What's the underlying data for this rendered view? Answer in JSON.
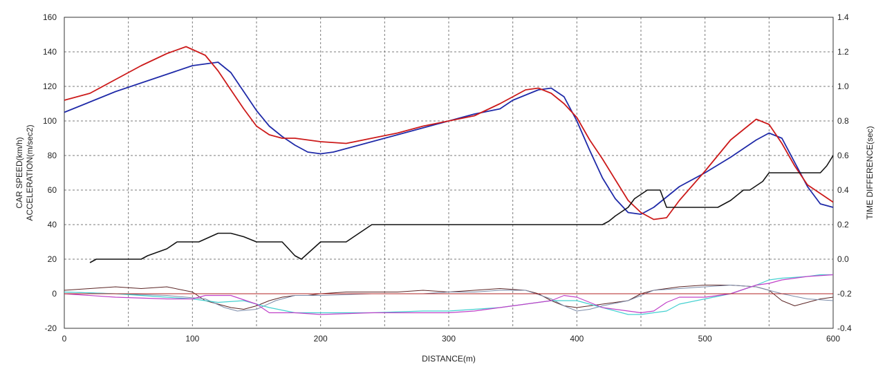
{
  "chart_data": {
    "type": "line",
    "xlabel": "DISTANCE(m)",
    "ylabel_line1": "CAR SPEED(km/h)",
    "ylabel_line2": "ACCELERATION(m/sec2)",
    "y2label": "TIME DIFFERENCE(sec)",
    "xlim": [
      0,
      600
    ],
    "ylim": [
      -20,
      160
    ],
    "y2lim": [
      -0.4,
      1.4
    ],
    "xticks": [
      0,
      100,
      200,
      300,
      400,
      500,
      600
    ],
    "yticks": [
      -20,
      0,
      20,
      40,
      60,
      80,
      100,
      120,
      140,
      160
    ],
    "y2ticks": [
      "-0.4",
      "-0.2",
      "0.0",
      "0.2",
      "0.4",
      "0.6",
      "0.8",
      "1.0",
      "1.2",
      "1.4"
    ],
    "grid": true,
    "series": [
      {
        "axis": "left",
        "color": "#1f2aa8",
        "width": 1.8,
        "x": [
          0,
          20,
          40,
          60,
          80,
          100,
          120,
          130,
          140,
          150,
          160,
          170,
          180,
          190,
          200,
          210,
          220,
          240,
          260,
          280,
          300,
          320,
          340,
          350,
          360,
          370,
          380,
          390,
          400,
          410,
          420,
          430,
          440,
          450,
          460,
          470,
          480,
          500,
          520,
          540,
          550,
          560,
          570,
          580,
          590,
          600
        ],
        "y": [
          105,
          111,
          117,
          122,
          127,
          132,
          134,
          128,
          117,
          106,
          97,
          91,
          86,
          82,
          81,
          82,
          84,
          88,
          92,
          96,
          100,
          104,
          107,
          112,
          115,
          118,
          119,
          114,
          100,
          83,
          67,
          55,
          47,
          46,
          50,
          56,
          62,
          70,
          79,
          89,
          93,
          90,
          76,
          62,
          52,
          50
        ]
      },
      {
        "axis": "left",
        "color": "#cc1a1a",
        "width": 1.8,
        "x": [
          0,
          20,
          40,
          60,
          80,
          95,
          110,
          120,
          130,
          140,
          150,
          160,
          170,
          180,
          200,
          220,
          240,
          260,
          280,
          300,
          320,
          340,
          360,
          370,
          380,
          390,
          400,
          410,
          420,
          430,
          440,
          450,
          460,
          470,
          480,
          500,
          520,
          540,
          550,
          560,
          570,
          580,
          590,
          600
        ],
        "y": [
          112,
          116,
          124,
          132,
          139,
          143,
          138,
          129,
          118,
          107,
          97,
          92,
          90,
          90,
          88,
          87,
          90,
          93,
          97,
          100,
          103,
          110,
          118,
          119,
          116,
          110,
          102,
          89,
          78,
          66,
          54,
          47,
          43,
          44,
          54,
          71,
          89,
          101,
          98,
          87,
          74,
          63,
          58,
          53
        ]
      },
      {
        "axis": "right",
        "color": "#111111",
        "width": 1.6,
        "x": [
          20,
          25,
          60,
          65,
          80,
          88,
          105,
          120,
          130,
          140,
          150,
          165,
          170,
          180,
          185,
          200,
          220,
          240,
          260,
          300,
          350,
          400,
          420,
          425,
          430,
          440,
          445,
          455,
          465,
          470,
          490,
          500,
          510,
          520,
          530,
          535,
          545,
          550,
          560,
          570,
          580,
          590,
          595,
          600
        ],
        "y": [
          -0.02,
          0.0,
          0.0,
          0.02,
          0.06,
          0.1,
          0.1,
          0.15,
          0.15,
          0.13,
          0.1,
          0.1,
          0.1,
          0.02,
          0.0,
          0.1,
          0.1,
          0.2,
          0.2,
          0.2,
          0.2,
          0.2,
          0.2,
          0.22,
          0.25,
          0.3,
          0.35,
          0.4,
          0.4,
          0.3,
          0.3,
          0.3,
          0.3,
          0.34,
          0.4,
          0.4,
          0.45,
          0.5,
          0.5,
          0.5,
          0.5,
          0.5,
          0.54,
          0.6
        ]
      },
      {
        "axis": "left",
        "color": "#5a2323",
        "width": 1.0,
        "x": [
          0,
          20,
          40,
          60,
          80,
          100,
          110,
          120,
          130,
          140,
          150,
          160,
          170,
          180,
          190,
          200,
          220,
          240,
          260,
          280,
          300,
          320,
          340,
          360,
          370,
          380,
          390,
          400,
          410,
          420,
          430,
          440,
          450,
          460,
          470,
          480,
          500,
          520,
          540,
          550,
          560,
          570,
          580,
          590,
          600
        ],
        "y": [
          2,
          3,
          4,
          3,
          4,
          1,
          -4,
          -6,
          -8,
          -9,
          -7,
          -4,
          -2,
          -1,
          -1,
          0,
          1,
          1,
          1,
          2,
          1,
          2,
          3,
          2,
          0,
          -4,
          -7,
          -8,
          -7,
          -6,
          -5,
          -4,
          0,
          2,
          3,
          4,
          5,
          5,
          4,
          2,
          -4,
          -7,
          -5,
          -3,
          -2
        ]
      },
      {
        "axis": "left",
        "color": "#7a8aa8",
        "width": 1.0,
        "x": [
          0,
          40,
          80,
          110,
          125,
          135,
          150,
          165,
          180,
          200,
          240,
          280,
          300,
          320,
          340,
          360,
          380,
          390,
          400,
          410,
          420,
          440,
          450,
          460,
          480,
          500,
          520,
          540,
          560,
          580,
          600
        ],
        "y": [
          1,
          0,
          -1,
          -3,
          -8,
          -10,
          -9,
          -4,
          -1,
          -1,
          0,
          0,
          1,
          1,
          2,
          2,
          -3,
          -7,
          -10,
          -9,
          -7,
          -4,
          -1,
          2,
          3,
          4,
          5,
          4,
          0,
          -3,
          -4
        ]
      },
      {
        "axis": "left",
        "color": "#42d0d0",
        "width": 1.2,
        "x": [
          0,
          40,
          80,
          100,
          120,
          140,
          160,
          180,
          200,
          240,
          280,
          300,
          320,
          340,
          360,
          380,
          400,
          420,
          440,
          450,
          460,
          470,
          480,
          500,
          520,
          540,
          550,
          560,
          580,
          590,
          600
        ],
        "y": [
          1,
          0,
          -2,
          -3,
          -5,
          -4,
          -8,
          -11,
          -11,
          -11,
          -10,
          -10,
          -9,
          -8,
          -6,
          -4,
          -4,
          -8,
          -12,
          -12,
          -11,
          -10,
          -6,
          -3,
          0,
          5,
          8,
          9,
          10,
          11,
          11
        ]
      },
      {
        "axis": "left",
        "color": "#c040c8",
        "width": 1.2,
        "x": [
          0,
          40,
          80,
          100,
          110,
          130,
          150,
          160,
          180,
          200,
          240,
          280,
          300,
          320,
          340,
          360,
          380,
          390,
          400,
          410,
          420,
          440,
          450,
          460,
          470,
          480,
          500,
          520,
          540,
          550,
          560,
          580,
          600
        ],
        "y": [
          0,
          -2,
          -3,
          -3,
          -1,
          -1,
          -6,
          -11,
          -11,
          -12,
          -11,
          -11,
          -11,
          -10,
          -8,
          -6,
          -4,
          -1,
          -2,
          -5,
          -8,
          -10,
          -11,
          -10,
          -5,
          -2,
          -2,
          0,
          5,
          6,
          8,
          10,
          11
        ]
      },
      {
        "axis": "left",
        "color": "#b02020",
        "width": 1.0,
        "x": [
          0,
          600
        ],
        "y": [
          0,
          0
        ]
      }
    ]
  }
}
